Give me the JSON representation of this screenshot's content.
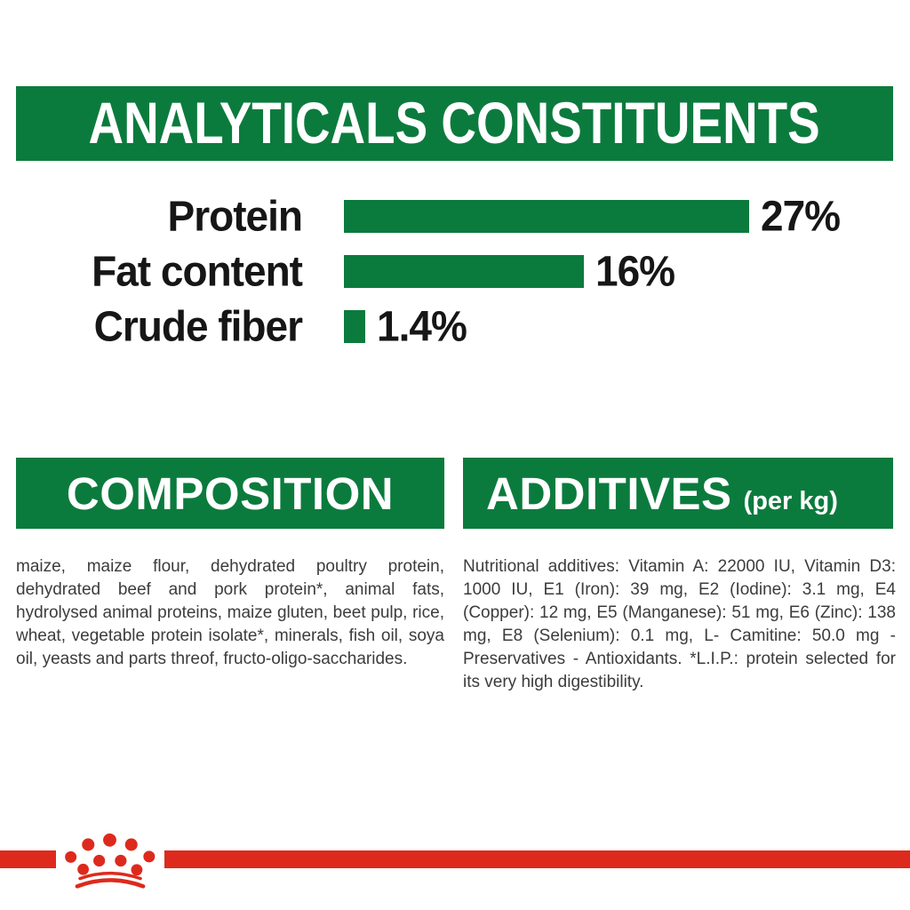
{
  "analyticals_header": {
    "title": "ANALYTICALS CONSTITUENTS"
  },
  "chart_data": {
    "type": "bar",
    "orientation": "horizontal",
    "title": "ANALYTICALS CONSTITUENTS",
    "categories": [
      "Protein",
      "Fat content",
      "Crude fiber"
    ],
    "values": [
      27,
      16,
      1.4
    ],
    "value_labels": [
      "27%",
      "16%",
      "1.4%"
    ],
    "unit": "%",
    "xlim": [
      0,
      27
    ],
    "bar_color": "#0b7b3d",
    "grid": false,
    "legend": false
  },
  "composition": {
    "title": "COMPOSITION",
    "body": "maize, maize flour, dehydrated poultry protein, dehydrated beef and pork protein*, animal fats, hydrolysed animal proteins, maize gluten, beet pulp, rice, wheat, vegetable protein isolate*, minerals, fish oil, soya oil, yeasts and parts threof, fructo-oligo-saccharides."
  },
  "additives": {
    "title": "ADDITIVES",
    "title_suffix": "(per kg)",
    "body": "Nutritional additives: Vitamin A: 22000 IU, Vitamin D3: 1000 IU, E1 (Iron): 39 mg, E2 (Iodine): 3.1 mg, E4 (Copper): 12 mg, E5 (Manganese): 51 mg, E6 (Zinc): 138 mg, E8 (Selenium): 0.1 mg, L- Camitine: 50.0 mg - Preservatives - Antioxidants. *L.I.P.: protein selected for its very high digestibility."
  },
  "footer": {
    "logo_icon": "royal-canin-crown-icon"
  },
  "colors": {
    "green": "#0b7b3d",
    "red": "#dd2a1c",
    "heading_text": "#ffffff",
    "chart_text": "#161616",
    "body_text": "#3c3c3c"
  }
}
